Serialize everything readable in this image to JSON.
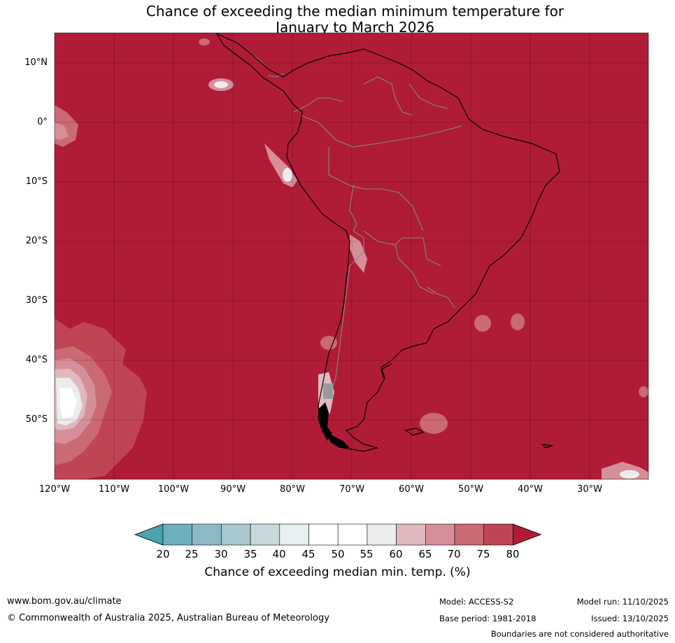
{
  "title_line1": "Chance of exceeding the median minimum temperature for",
  "title_line2": "January to March 2026",
  "lat_labels": [
    "10°N",
    "0°",
    "10°S",
    "20°S",
    "30°S",
    "40°S",
    "50°S"
  ],
  "lon_labels": [
    "120°W",
    "110°W",
    "100°W",
    "90°W",
    "80°W",
    "70°W",
    "60°W",
    "50°W",
    "40°W",
    "30°W"
  ],
  "colorbar": {
    "ticks": [
      "20",
      "25",
      "30",
      "35",
      "40",
      "45",
      "50",
      "55",
      "60",
      "65",
      "70",
      "75",
      "80"
    ],
    "colors": [
      "#4aa3b0",
      "#6db0bc",
      "#8bbac5",
      "#a9c8cd",
      "#c8d9dc",
      "#e8eff0",
      "#ffffff",
      "#ffffff",
      "#ececec",
      "#e0b9bf",
      "#d68f98",
      "#c96a75",
      "#bf4556",
      "#b01c37"
    ],
    "label": "Chance of exceeding median min. temp. (%)"
  },
  "colors": {
    "dominant": "#b01c37",
    "land_border": "#888888",
    "coast": "#000000"
  },
  "footer": {
    "website": "www.bom.gov.au/climate",
    "copyright": "© Commonwealth of Australia 2025, Australian Bureau of Meteorology",
    "model": "Model: ACCESS-S2",
    "model_run": "Model run: 11/10/2025",
    "base_period": "Base period: 1981-2018",
    "issued": "Issued: 13/10/2025",
    "disclaimer": "Boundaries are not considered authoritative"
  }
}
